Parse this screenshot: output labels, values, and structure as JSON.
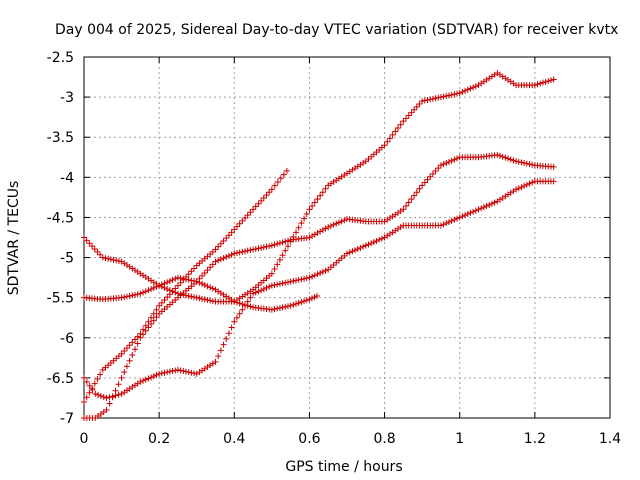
{
  "chart_data": {
    "type": "scatter",
    "title": "Day 004 of 2025, Sidereal Day-to-day VTEC variation (SDTVAR) for receiver kvtx",
    "xlabel": "GPS time / hours",
    "ylabel": "SDTVAR / TECUs",
    "xlim": [
      0,
      1.4
    ],
    "ylim": [
      -7,
      -2.5
    ],
    "xticks": [
      "0",
      "0.2",
      "0.4",
      "0.6",
      "0.8",
      "1",
      "1.2",
      "1.4"
    ],
    "yticks": [
      "-2.5",
      "-3",
      "-3.5",
      "-4",
      "-4.5",
      "-5",
      "-5.5",
      "-6",
      "-6.5",
      "-7"
    ],
    "grid": true,
    "marker": "plus",
    "color": "#cc0000",
    "series": [
      {
        "x": [
          0,
          0.05,
          0.1,
          0.15,
          0.2,
          0.25,
          0.3,
          0.35,
          0.4,
          0.45,
          0.5,
          0.54
        ],
        "y": [
          -6.8,
          -6.4,
          -6.2,
          -5.95,
          -5.6,
          -5.35,
          -5.1,
          -4.9,
          -4.65,
          -4.4,
          -4.15,
          -3.92
        ]
      },
      {
        "x": [
          0,
          0.05,
          0.1,
          0.15,
          0.2,
          0.25,
          0.3,
          0.35,
          0.4,
          0.45,
          0.5,
          0.55,
          0.6,
          0.62
        ],
        "y": [
          -4.75,
          -5.0,
          -5.05,
          -5.2,
          -5.35,
          -5.45,
          -5.5,
          -5.55,
          -5.55,
          -5.62,
          -5.65,
          -5.6,
          -5.52,
          -5.48
        ]
      },
      {
        "x": [
          0,
          0.05,
          0.1,
          0.15,
          0.2,
          0.25,
          0.3,
          0.35,
          0.4,
          0.45,
          0.5,
          0.55,
          0.6,
          0.65,
          0.7,
          0.75,
          0.8,
          0.85,
          0.9,
          0.95,
          1.0,
          1.05,
          1.1,
          1.15,
          1.2,
          1.25
        ],
        "y": [
          -5.5,
          -5.52,
          -5.5,
          -5.45,
          -5.35,
          -5.25,
          -5.3,
          -5.4,
          -5.55,
          -5.4,
          -5.2,
          -4.8,
          -4.4,
          -4.1,
          -3.95,
          -3.8,
          -3.6,
          -3.3,
          -3.05,
          -3.0,
          -2.95,
          -2.85,
          -2.7,
          -2.85,
          -2.85,
          -2.78
        ]
      },
      {
        "x": [
          0,
          0.03,
          0.06,
          0.1,
          0.15,
          0.2,
          0.25,
          0.3,
          0.35,
          0.4,
          0.45,
          0.5,
          0.55,
          0.6,
          0.65,
          0.7,
          0.75,
          0.8,
          0.85,
          0.9,
          0.95,
          1.0,
          1.05,
          1.1,
          1.15,
          1.2,
          1.25
        ],
        "y": [
          -6.5,
          -6.7,
          -6.75,
          -6.7,
          -6.55,
          -6.45,
          -6.4,
          -6.45,
          -6.3,
          -5.8,
          -5.45,
          -5.35,
          -5.3,
          -5.25,
          -5.15,
          -4.95,
          -4.85,
          -4.75,
          -4.6,
          -4.6,
          -4.6,
          -4.5,
          -4.4,
          -4.3,
          -4.15,
          -4.05,
          -4.05
        ]
      },
      {
        "x": [
          0,
          0.03,
          0.06,
          0.1,
          0.15,
          0.2,
          0.25,
          0.3,
          0.35,
          0.4,
          0.45,
          0.5,
          0.55,
          0.6,
          0.65,
          0.7,
          0.75,
          0.8,
          0.85,
          0.9,
          0.95,
          1.0,
          1.05,
          1.1,
          1.15,
          1.2,
          1.25
        ],
        "y": [
          -7.0,
          -7.0,
          -6.9,
          -6.5,
          -6.0,
          -5.7,
          -5.5,
          -5.3,
          -5.05,
          -4.95,
          -4.9,
          -4.85,
          -4.78,
          -4.75,
          -4.62,
          -4.52,
          -4.55,
          -4.55,
          -4.4,
          -4.1,
          -3.85,
          -3.75,
          -3.75,
          -3.72,
          -3.8,
          -3.85,
          -3.87
        ]
      }
    ]
  }
}
